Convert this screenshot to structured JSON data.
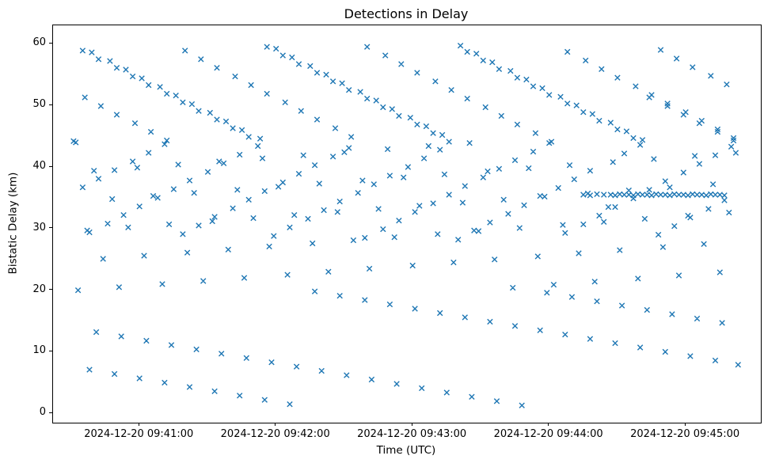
{
  "figure": {
    "title": "Detections in Delay",
    "xlabel": "Time (UTC)",
    "ylabel": "Bistatic Delay (km)",
    "background_color": "#ffffff",
    "spine_color": "#000000"
  },
  "chart_data": {
    "type": "scatter",
    "title": "Detections in Delay",
    "xlabel": "Time (UTC)",
    "ylabel": "Bistatic Delay (km)",
    "marker": "x",
    "marker_color": "#1f77b4",
    "grid": false,
    "legend": "none",
    "x_epoch": "2024-12-20 09:40:30",
    "x_unit": "seconds after x_epoch",
    "xlim": [
      -8,
      303
    ],
    "ylim": [
      -1.5,
      63
    ],
    "y_ticks": [
      0,
      10,
      20,
      30,
      40,
      50,
      60
    ],
    "x_ticks": [
      {
        "t": 30,
        "label": "2024-12-20 09:41:00"
      },
      {
        "t": 90,
        "label": "2024-12-20 09:42:00"
      },
      {
        "t": 150,
        "label": "2024-12-20 09:43:00"
      },
      {
        "t": 210,
        "label": "2024-12-20 09:44:00"
      },
      {
        "t": 270,
        "label": "2024-12-20 09:45:00"
      }
    ],
    "points": [
      [
        2,
        44.0
      ],
      [
        3,
        20.0
      ],
      [
        1,
        44.2
      ],
      [
        5,
        58.9
      ],
      [
        6,
        51.3
      ],
      [
        7,
        29.7
      ],
      [
        5,
        36.7
      ],
      [
        8,
        7.1
      ],
      [
        9,
        58.6
      ],
      [
        10,
        39.4
      ],
      [
        8,
        29.4
      ],
      [
        11,
        13.2
      ],
      [
        12,
        57.5
      ],
      [
        13,
        49.9
      ],
      [
        14,
        25.1
      ],
      [
        12,
        38.1
      ],
      [
        17,
        57.2
      ],
      [
        18,
        34.8
      ],
      [
        16,
        30.8
      ],
      [
        19,
        6.4
      ],
      [
        20,
        56.1
      ],
      [
        20,
        48.5
      ],
      [
        21,
        20.5
      ],
      [
        19,
        39.5
      ],
      [
        22,
        12.5
      ],
      [
        24,
        55.8
      ],
      [
        25,
        30.2
      ],
      [
        23,
        32.2
      ],
      [
        27,
        54.7
      ],
      [
        28,
        47.1
      ],
      [
        29,
        39.9
      ],
      [
        27,
        40.9
      ],
      [
        30,
        5.7
      ],
      [
        31,
        54.4
      ],
      [
        32,
        25.6
      ],
      [
        30,
        33.6
      ],
      [
        33,
        11.8
      ],
      [
        34,
        53.3
      ],
      [
        35,
        45.7
      ],
      [
        36,
        35.3
      ],
      [
        34,
        42.3
      ],
      [
        39,
        53.0
      ],
      [
        40,
        21.0
      ],
      [
        38,
        35.0
      ],
      [
        41,
        5.0
      ],
      [
        42,
        51.9
      ],
      [
        42,
        44.3
      ],
      [
        43,
        30.7
      ],
      [
        41,
        43.7
      ],
      [
        44,
        11.1
      ],
      [
        46,
        51.6
      ],
      [
        47,
        40.4
      ],
      [
        45,
        36.4
      ],
      [
        49,
        50.5
      ],
      [
        50,
        58.9
      ],
      [
        51,
        26.1
      ],
      [
        49,
        29.1
      ],
      [
        52,
        4.3
      ],
      [
        53,
        50.2
      ],
      [
        54,
        35.8
      ],
      [
        52,
        37.8
      ],
      [
        55,
        10.4
      ],
      [
        56,
        49.1
      ],
      [
        57,
        57.5
      ],
      [
        58,
        21.5
      ],
      [
        56,
        30.5
      ],
      [
        61,
        48.8
      ],
      [
        62,
        31.2
      ],
      [
        60,
        39.2
      ],
      [
        63,
        3.6
      ],
      [
        64,
        47.7
      ],
      [
        64,
        56.1
      ],
      [
        65,
        40.9
      ],
      [
        63,
        31.9
      ],
      [
        66,
        9.7
      ],
      [
        68,
        47.4
      ],
      [
        69,
        26.6
      ],
      [
        67,
        40.6
      ],
      [
        71,
        46.3
      ],
      [
        72,
        54.7
      ],
      [
        73,
        36.3
      ],
      [
        71,
        33.3
      ],
      [
        74,
        2.9
      ],
      [
        75,
        46.0
      ],
      [
        76,
        22.0
      ],
      [
        74,
        42.0
      ],
      [
        77,
        9.0
      ],
      [
        78,
        44.9
      ],
      [
        79,
        53.3
      ],
      [
        80,
        31.7
      ],
      [
        78,
        34.7
      ],
      [
        83,
        44.6
      ],
      [
        84,
        41.4
      ],
      [
        82,
        43.4
      ],
      [
        85,
        2.2
      ],
      [
        86,
        59.5
      ],
      [
        86,
        51.9
      ],
      [
        87,
        27.1
      ],
      [
        85,
        36.1
      ],
      [
        88,
        8.3
      ],
      [
        90,
        59.2
      ],
      [
        91,
        36.8
      ],
      [
        89,
        28.8
      ],
      [
        93,
        58.1
      ],
      [
        94,
        50.5
      ],
      [
        95,
        22.5
      ],
      [
        93,
        37.5
      ],
      [
        96,
        1.5
      ],
      [
        97,
        57.8
      ],
      [
        98,
        32.2
      ],
      [
        96,
        30.2
      ],
      [
        99,
        7.6
      ],
      [
        100,
        56.7
      ],
      [
        101,
        49.1
      ],
      [
        102,
        41.9
      ],
      [
        100,
        38.9
      ],
      [
        105,
        56.4
      ],
      [
        106,
        27.6
      ],
      [
        104,
        31.6
      ],
      [
        107,
        19.8
      ],
      [
        108,
        55.3
      ],
      [
        108,
        47.7
      ],
      [
        109,
        37.3
      ],
      [
        107,
        40.3
      ],
      [
        110,
        6.9
      ],
      [
        112,
        55.0
      ],
      [
        113,
        23.0
      ],
      [
        111,
        33.0
      ],
      [
        115,
        53.9
      ],
      [
        116,
        46.3
      ],
      [
        117,
        32.7
      ],
      [
        115,
        41.7
      ],
      [
        118,
        19.1
      ],
      [
        119,
        53.6
      ],
      [
        120,
        42.4
      ],
      [
        118,
        34.4
      ],
      [
        121,
        6.2
      ],
      [
        122,
        52.5
      ],
      [
        123,
        44.9
      ],
      [
        124,
        28.1
      ],
      [
        122,
        43.1
      ],
      [
        127,
        52.2
      ],
      [
        128,
        37.8
      ],
      [
        126,
        35.8
      ],
      [
        129,
        18.4
      ],
      [
        130,
        51.1
      ],
      [
        130,
        59.5
      ],
      [
        131,
        23.5
      ],
      [
        129,
        28.5
      ],
      [
        132,
        5.5
      ],
      [
        134,
        50.8
      ],
      [
        135,
        33.2
      ],
      [
        133,
        37.2
      ],
      [
        137,
        49.7
      ],
      [
        138,
        58.1
      ],
      [
        139,
        42.9
      ],
      [
        137,
        29.9
      ],
      [
        140,
        17.7
      ],
      [
        141,
        49.4
      ],
      [
        142,
        28.6
      ],
      [
        140,
        38.6
      ],
      [
        143,
        4.8
      ],
      [
        144,
        48.3
      ],
      [
        145,
        56.7
      ],
      [
        146,
        38.3
      ],
      [
        144,
        31.3
      ],
      [
        149,
        48.0
      ],
      [
        150,
        24.0
      ],
      [
        148,
        40.0
      ],
      [
        151,
        17.0
      ],
      [
        152,
        46.9
      ],
      [
        152,
        55.3
      ],
      [
        153,
        33.7
      ],
      [
        151,
        32.7
      ],
      [
        154,
        4.1
      ],
      [
        156,
        46.6
      ],
      [
        157,
        43.4
      ],
      [
        155,
        41.4
      ],
      [
        159,
        45.5
      ],
      [
        160,
        53.9
      ],
      [
        161,
        29.1
      ],
      [
        159,
        34.1
      ],
      [
        162,
        16.3
      ],
      [
        163,
        45.2
      ],
      [
        164,
        38.8
      ],
      [
        162,
        42.8
      ],
      [
        165,
        3.4
      ],
      [
        166,
        44.1
      ],
      [
        167,
        52.5
      ],
      [
        168,
        24.5
      ],
      [
        166,
        35.5
      ],
      [
        171,
        59.7
      ],
      [
        172,
        34.2
      ],
      [
        170,
        28.2
      ],
      [
        173,
        15.6
      ],
      [
        174,
        58.7
      ],
      [
        174,
        51.1
      ],
      [
        175,
        43.9
      ],
      [
        173,
        36.9
      ],
      [
        176,
        2.7
      ],
      [
        178,
        58.4
      ],
      [
        179,
        29.6
      ],
      [
        177,
        29.7
      ],
      [
        181,
        57.3
      ],
      [
        182,
        49.7
      ],
      [
        183,
        39.3
      ],
      [
        181,
        38.3
      ],
      [
        184,
        14.9
      ],
      [
        185,
        57.0
      ],
      [
        186,
        25.0
      ],
      [
        184,
        31.0
      ],
      [
        187,
        2.0
      ],
      [
        188,
        55.9
      ],
      [
        189,
        48.3
      ],
      [
        190,
        34.7
      ],
      [
        188,
        39.7
      ],
      [
        193,
        55.6
      ],
      [
        194,
        20.4
      ],
      [
        192,
        32.4
      ],
      [
        195,
        14.2
      ],
      [
        196,
        54.5
      ],
      [
        196,
        46.9
      ],
      [
        197,
        30.1
      ],
      [
        195,
        41.1
      ],
      [
        198,
        1.3
      ],
      [
        200,
        54.2
      ],
      [
        201,
        39.8
      ],
      [
        199,
        33.8
      ],
      [
        203,
        53.1
      ],
      [
        204,
        45.5
      ],
      [
        205,
        25.5
      ],
      [
        203,
        42.5
      ],
      [
        206,
        13.5
      ],
      [
        207,
        52.8
      ],
      [
        208,
        35.2
      ],
      [
        206,
        35.3
      ],
      [
        209,
        19.6
      ],
      [
        210,
        51.7
      ],
      [
        211,
        44.1
      ],
      [
        212,
        20.9
      ],
      [
        210,
        43.9
      ],
      [
        215,
        51.4
      ],
      [
        216,
        30.6
      ],
      [
        214,
        36.6
      ],
      [
        217,
        12.8
      ],
      [
        218,
        50.3
      ],
      [
        218,
        58.7
      ],
      [
        219,
        40.3
      ],
      [
        217,
        29.3
      ],
      [
        220,
        18.9
      ],
      [
        222,
        50.0
      ],
      [
        223,
        26.0
      ],
      [
        221,
        38.0
      ],
      [
        225,
        48.9
      ],
      [
        226,
        57.3
      ],
      [
        227,
        35.7
      ],
      [
        225,
        30.7
      ],
      [
        228,
        12.1
      ],
      [
        229,
        48.6
      ],
      [
        230,
        21.4
      ],
      [
        228,
        39.4
      ],
      [
        231,
        18.2
      ],
      [
        232,
        47.5
      ],
      [
        233,
        55.9
      ],
      [
        234,
        31.1
      ],
      [
        232,
        32.1
      ],
      [
        237,
        47.2
      ],
      [
        238,
        40.8
      ],
      [
        236,
        33.5
      ],
      [
        239,
        11.4
      ],
      [
        240,
        46.1
      ],
      [
        240,
        54.5
      ],
      [
        241,
        26.5
      ],
      [
        239,
        33.5
      ],
      [
        242,
        17.5
      ],
      [
        244,
        45.8
      ],
      [
        245,
        36.2
      ],
      [
        243,
        42.2
      ],
      [
        247,
        44.7
      ],
      [
        248,
        53.1
      ],
      [
        249,
        21.9
      ],
      [
        247,
        34.9
      ],
      [
        250,
        10.7
      ],
      [
        251,
        44.4
      ],
      [
        252,
        31.6
      ],
      [
        250,
        43.6
      ],
      [
        253,
        16.8
      ],
      [
        254,
        51.3
      ],
      [
        255,
        51.7
      ],
      [
        256,
        41.3
      ],
      [
        254,
        36.3
      ],
      [
        259,
        59.0
      ],
      [
        260,
        27.0
      ],
      [
        258,
        29.0
      ],
      [
        261,
        10.0
      ],
      [
        262,
        49.9
      ],
      [
        262,
        50.3
      ],
      [
        263,
        36.7
      ],
      [
        261,
        37.7
      ],
      [
        264,
        16.1
      ],
      [
        266,
        57.6
      ],
      [
        267,
        22.4
      ],
      [
        265,
        30.4
      ],
      [
        269,
        48.5
      ],
      [
        270,
        48.9
      ],
      [
        271,
        32.1
      ],
      [
        269,
        39.1
      ],
      [
        272,
        9.3
      ],
      [
        273,
        56.2
      ],
      [
        274,
        41.8
      ],
      [
        272,
        31.8
      ],
      [
        275,
        15.4
      ],
      [
        276,
        47.1
      ],
      [
        277,
        47.5
      ],
      [
        278,
        27.5
      ],
      [
        276,
        40.5
      ],
      [
        281,
        54.8
      ],
      [
        282,
        37.2
      ],
      [
        280,
        33.2
      ],
      [
        283,
        8.6
      ],
      [
        284,
        45.7
      ],
      [
        284,
        46.1
      ],
      [
        285,
        22.9
      ],
      [
        283,
        41.9
      ],
      [
        286,
        14.7
      ],
      [
        288,
        53.4
      ],
      [
        289,
        32.6
      ],
      [
        287,
        34.6
      ],
      [
        291,
        44.3
      ],
      [
        291,
        44.7
      ],
      [
        292,
        42.3
      ],
      [
        290,
        43.3
      ],
      [
        293,
        7.9
      ],
      [
        225,
        35.5
      ],
      [
        228,
        35.4
      ],
      [
        231,
        35.6
      ],
      [
        234,
        35.5
      ],
      [
        237,
        35.5
      ],
      [
        239,
        35.4
      ],
      [
        241,
        35.6
      ],
      [
        243,
        35.5
      ],
      [
        245,
        35.5
      ],
      [
        247,
        35.4
      ],
      [
        249,
        35.6
      ],
      [
        251,
        35.5
      ],
      [
        253,
        35.5
      ],
      [
        255,
        35.4
      ],
      [
        257,
        35.6
      ],
      [
        259,
        35.5
      ],
      [
        261,
        35.5
      ],
      [
        263,
        35.4
      ],
      [
        265,
        35.6
      ],
      [
        267,
        35.5
      ],
      [
        269,
        35.5
      ],
      [
        271,
        35.4
      ],
      [
        273,
        35.6
      ],
      [
        275,
        35.5
      ],
      [
        277,
        35.5
      ],
      [
        279,
        35.4
      ],
      [
        281,
        35.6
      ],
      [
        283,
        35.5
      ],
      [
        285,
        35.5
      ],
      [
        287,
        35.4
      ]
    ]
  }
}
